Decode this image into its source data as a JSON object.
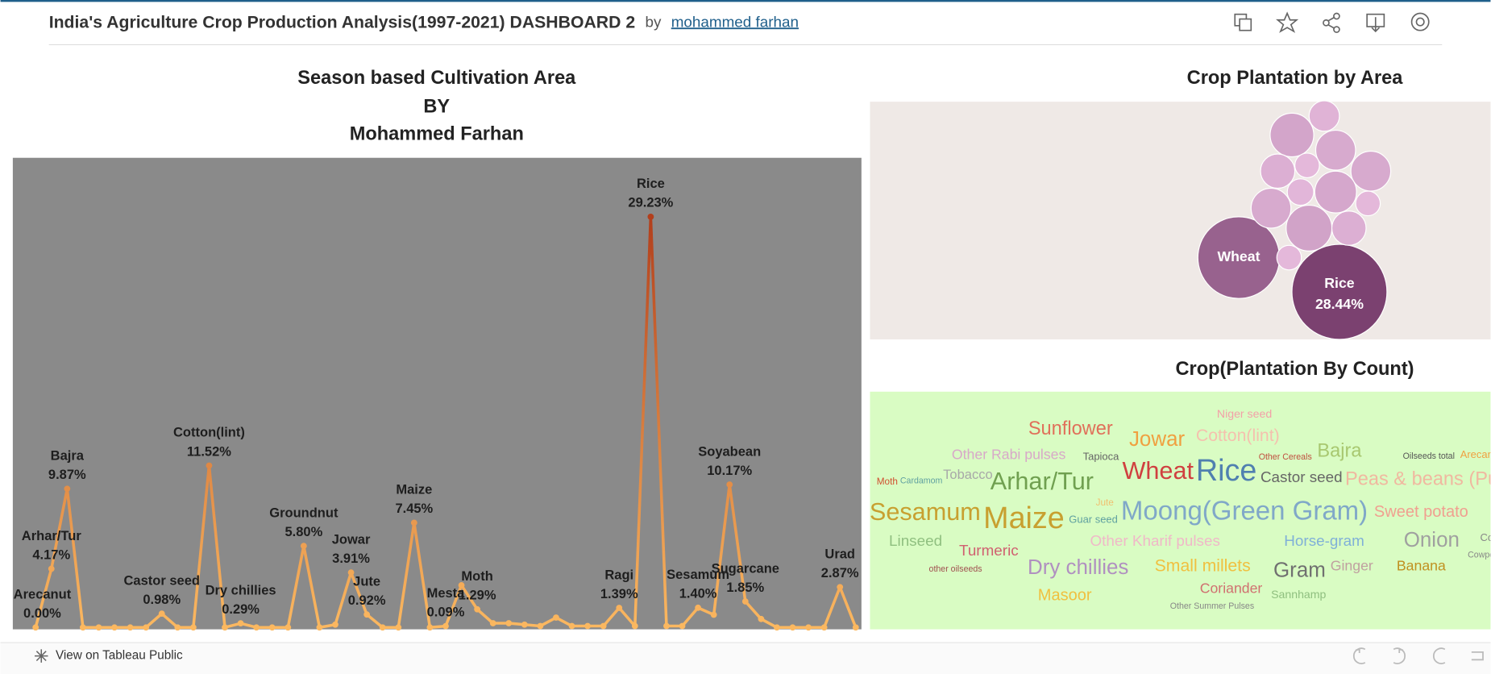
{
  "header": {
    "title": "India's Agriculture Crop Production Analysis(1997-2021) DASHBOARD 2",
    "by": "by",
    "author": "mohammed farhan"
  },
  "footer": {
    "link": "View on Tableau Public"
  },
  "chart_data": [
    {
      "type": "line",
      "title_lines": [
        "Season based Cultivation Area",
        "BY",
        "Mohammed Farhan"
      ],
      "categories": [
        "Arecanut",
        "Arhar/Tur",
        "Bajra",
        null,
        null,
        null,
        null,
        null,
        "Castor seed",
        null,
        null,
        "Cotton(lint)",
        null,
        "Dry chillies",
        null,
        null,
        null,
        "Groundnut",
        null,
        null,
        "Jowar",
        "Jute",
        null,
        null,
        "Maize",
        null,
        "Mesta",
        null,
        "Moth",
        null,
        null,
        null,
        null,
        null,
        null,
        null,
        null,
        "Ragi",
        null,
        "Rice",
        null,
        null,
        "Sesamum",
        null,
        "Soyabean",
        "Sugarcane",
        null,
        null,
        null,
        null,
        null,
        "Urad",
        null
      ],
      "values": [
        0.0,
        4.17,
        9.87,
        0,
        0,
        0,
        0,
        0,
        0.98,
        0,
        0,
        11.52,
        0,
        0.29,
        0,
        0,
        0,
        5.8,
        0,
        0.2,
        3.91,
        0.92,
        0,
        0,
        7.45,
        0,
        0.09,
        3.0,
        1.29,
        0.3,
        0.3,
        0.2,
        0.1,
        0.7,
        0.1,
        0.1,
        0.1,
        1.39,
        0.1,
        29.23,
        0.1,
        0.1,
        1.4,
        0.9,
        10.17,
        1.85,
        0.6,
        0,
        0,
        0,
        0,
        2.87,
        0
      ],
      "value_labels": [
        "0.00%",
        "4.17%",
        "9.87%",
        null,
        null,
        null,
        null,
        null,
        "0.98%",
        null,
        null,
        "11.52%",
        null,
        "0.29%",
        null,
        null,
        null,
        "5.80%",
        null,
        null,
        "3.91%",
        "0.92%",
        null,
        null,
        "7.45%",
        null,
        "0.09%",
        null,
        "1.29%",
        null,
        null,
        null,
        null,
        null,
        null,
        null,
        null,
        "1.39%",
        null,
        "29.23%",
        null,
        null,
        "1.40%",
        null,
        "10.17%",
        "1.85%",
        null,
        null,
        null,
        null,
        null,
        "2.87%",
        null
      ],
      "color_low": "#fbb860",
      "color_high": "#b23f1c",
      "background": "#8a8a8a"
    },
    {
      "type": "bubble",
      "title": "Crop Plantation by Area",
      "categories": [
        "Rice",
        "Wheat",
        null,
        null,
        null,
        null,
        null,
        null,
        null,
        null,
        null,
        null,
        null,
        null,
        null
      ],
      "values": [
        28.44,
        21.0,
        6.0,
        2.9,
        5.0,
        3.7,
        1.9,
        5.0,
        5.5,
        2.2,
        5.0,
        1.9,
        6.6,
        3.7,
        1.9
      ],
      "value_labels": [
        "28.44%",
        null,
        null,
        null,
        null,
        null,
        null,
        null,
        null,
        null,
        null,
        null,
        null,
        null,
        null
      ],
      "color_low": "#ebc0e2",
      "color_high": "#7b4170",
      "background": "#efe9e6"
    },
    {
      "type": "wordcloud",
      "title": "Crop(Plantation  By Count)",
      "words": [
        "Niger seed",
        "Sunflower",
        "Jowar",
        "Cotton(lint)",
        "Other Rabi pulses",
        "Tapioca",
        "Bajra",
        "Other Cereals",
        "Oilseeds total",
        "Arecanut",
        "Moth",
        "Cardamom",
        "Tobacco",
        "Arhar/Tur",
        "Wheat",
        "Rice",
        "Castor seed",
        "Peas & beans (Pulses)",
        "Jute",
        "Sesamum",
        "Maize",
        "Guar seed",
        "Moong(Green Gram)",
        "Sweet potato",
        "Linseed",
        "Turmeric",
        "Other Kharif pulses",
        "Horse-gram",
        "Onion",
        "Coconut",
        "Cowpea(Lobia)",
        "other oilseeds",
        "Dry chillies",
        "Small millets",
        "Gram",
        "Ginger",
        "Banana",
        "Coriander",
        "Masoor",
        "Sannhamp",
        "Other Summer Pulses"
      ],
      "colors": [
        "#f3a0a8",
        "#e0705a",
        "#f0a040",
        "#f5c0ae",
        "#d8a8c8",
        "#666666",
        "#a8c870",
        "#c05040",
        "#555555",
        "#f0a040",
        "#d05030",
        "#5fa0a0",
        "#a8a8a8",
        "#70a050",
        "#d04040",
        "#5080b0",
        "#666666",
        "#f0b8a0",
        "#f0c070",
        "#c8a030",
        "#c8a030",
        "#5fa0a0",
        "#80a8c8",
        "#f0a090",
        "#90c080",
        "#d06070",
        "#f0b8c8",
        "#80b0d8",
        "#a0a0a0",
        "#888888",
        "#888888",
        "#a05050",
        "#b090c0",
        "#f0c040",
        "#707070",
        "#c0a0a0",
        "#c09020",
        "#d07070",
        "#f0c040",
        "#90c080",
        "#888888"
      ],
      "background": "#d9fcc3"
    }
  ]
}
